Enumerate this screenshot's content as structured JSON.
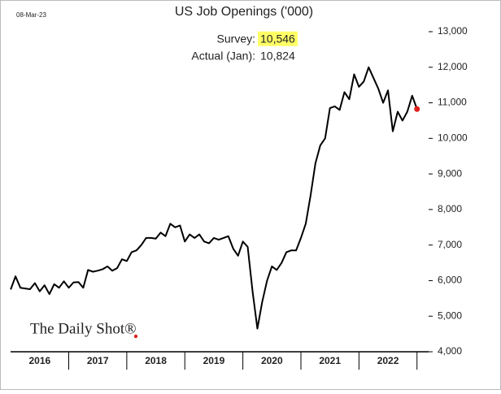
{
  "chart_data": {
    "type": "line",
    "title": "US Job Openings ('000)",
    "date": "08-Mar-23",
    "source": "The Daily Shot®",
    "annotations": [
      {
        "label": "Survey:",
        "value": "10,546",
        "highlight": "#ffff66"
      },
      {
        "label": "Actual (Jan):",
        "value": "10,824"
      }
    ],
    "x": [
      2016,
      2016.083,
      2016.167,
      2016.25,
      2016.333,
      2016.417,
      2016.5,
      2016.583,
      2016.667,
      2016.75,
      2016.833,
      2016.917,
      2017,
      2017.083,
      2017.167,
      2017.25,
      2017.333,
      2017.417,
      2017.5,
      2017.583,
      2017.667,
      2017.75,
      2017.833,
      2017.917,
      2018,
      2018.083,
      2018.167,
      2018.25,
      2018.333,
      2018.417,
      2018.5,
      2018.583,
      2018.667,
      2018.75,
      2018.833,
      2018.917,
      2019,
      2019.083,
      2019.167,
      2019.25,
      2019.333,
      2019.417,
      2019.5,
      2019.583,
      2019.667,
      2019.75,
      2019.833,
      2019.917,
      2020,
      2020.083,
      2020.167,
      2020.25,
      2020.333,
      2020.417,
      2020.5,
      2020.583,
      2020.667,
      2020.75,
      2020.833,
      2020.917,
      2021,
      2021.083,
      2021.167,
      2021.25,
      2021.333,
      2021.417,
      2021.5,
      2021.583,
      2021.667,
      2021.75,
      2021.833,
      2021.917,
      2022,
      2022.083,
      2022.167,
      2022.25,
      2022.333,
      2022.417,
      2022.5,
      2022.583,
      2022.667,
      2022.75,
      2022.833,
      2022.917,
      2023
    ],
    "series": [
      {
        "name": "Job openings",
        "color": "#000000",
        "marker_color": "#e0201b",
        "values": [
          5750,
          6120,
          5800,
          5780,
          5760,
          5930,
          5700,
          5870,
          5620,
          5900,
          5800,
          5980,
          5800,
          5950,
          5960,
          5800,
          6300,
          6250,
          6280,
          6320,
          6400,
          6280,
          6350,
          6600,
          6550,
          6800,
          6850,
          7000,
          7200,
          7200,
          7180,
          7350,
          7250,
          7600,
          7500,
          7550,
          7100,
          7300,
          7200,
          7300,
          7100,
          7050,
          7200,
          7150,
          7200,
          7250,
          6900,
          6700,
          7100,
          6950,
          5700,
          4650,
          5400,
          6000,
          6400,
          6300,
          6500,
          6800,
          6850,
          6850,
          7200,
          7600,
          8400,
          9300,
          9800,
          10000,
          10850,
          10900,
          10800,
          11300,
          11100,
          11800,
          11450,
          11600,
          12000,
          11700,
          11400,
          11000,
          11350,
          10200,
          10750,
          10500,
          10750,
          11200,
          10824
        ]
      }
    ],
    "xlim": [
      2015.9,
      2023.2
    ],
    "xticks": [
      2016,
      2017,
      2018,
      2019,
      2020,
      2021,
      2022
    ],
    "ylim": [
      4000,
      13000
    ],
    "yticks": [
      {
        "value": 4000,
        "label": "4,000"
      },
      {
        "value": 5000,
        "label": "5,000"
      },
      {
        "value": 6000,
        "label": "6,000"
      },
      {
        "value": 7000,
        "label": "7,000"
      },
      {
        "value": 8000,
        "label": "8,000"
      },
      {
        "value": 9000,
        "label": "9,000"
      },
      {
        "value": 10000,
        "label": "10,000"
      },
      {
        "value": 11000,
        "label": "11,000"
      },
      {
        "value": 12000,
        "label": "12,000"
      },
      {
        "value": 13000,
        "label": "13,000"
      }
    ]
  }
}
